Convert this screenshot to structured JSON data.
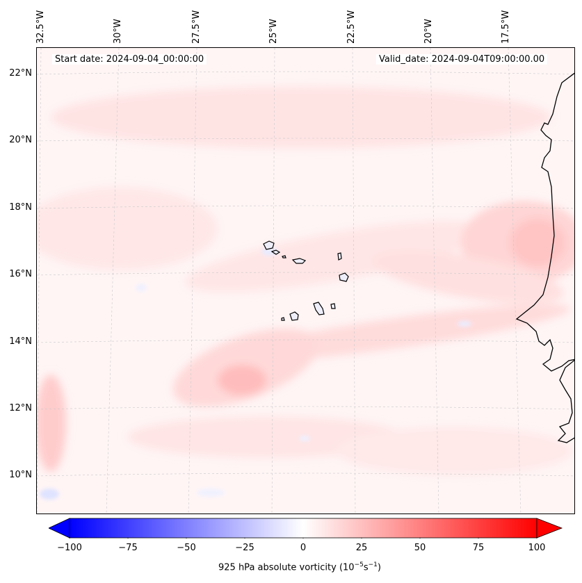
{
  "map": {
    "start_date": "Start date: 2024-09-04_00:00:00",
    "valid_date": "Valid_date: 2024-09-04T09:00:00.00",
    "lon_labels": [
      "32.5°W",
      "30°W",
      "27.5°W",
      "25°W",
      "22.5°W",
      "20°W",
      "17.5°W"
    ],
    "lat_labels": [
      "22°N",
      "20°N",
      "18°N",
      "16°N",
      "14°N",
      "12°N",
      "10°N"
    ]
  },
  "colorbar": {
    "ticks": [
      "−100",
      "−75",
      "−50",
      "−25",
      "0",
      "25",
      "50",
      "75",
      "100"
    ],
    "title": "925 hPa absolute vorticity (10",
    "title_exp1": "−5",
    "title_mid": "s",
    "title_exp2": "−1",
    "title_end": ")",
    "colors": {
      "neg": "#0000ff",
      "zero": "#ffffff",
      "pos": "#ff0000"
    }
  }
}
